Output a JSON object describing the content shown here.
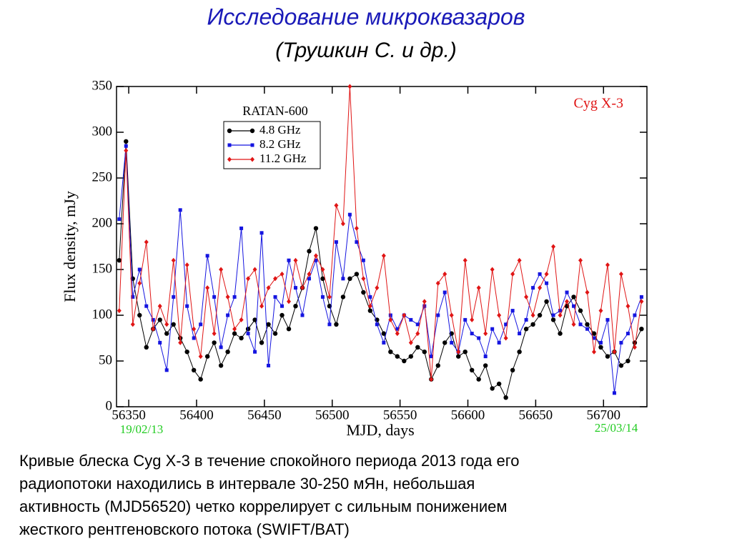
{
  "chart_data": {
    "type": "line",
    "title": "Исследование микроквазаров",
    "subtitle": "(Трушкин С. и др.)",
    "x_label": "MJD, days",
    "y_label": "Flux density, mJy",
    "legend_title": "RATAN-600",
    "annotation": "Cyg X-3",
    "start_date": "19/02/13",
    "end_date": "25/03/14",
    "caption": [
      "Кривые блеска Cyg X-3 в течение спокойного периода 2013 года его",
      "радиопотоки  находились в интервале 30-250 мЯн, небольшая",
      "активность (MJD56520) четко коррелирует с сильным понижением",
      "жесткого рентгеновского потока (SWIFT/BAT)"
    ],
    "xlim": [
      56341,
      56732
    ],
    "ylim": [
      0,
      350
    ],
    "xticks": [
      56350,
      56400,
      56450,
      56500,
      56550,
      56600,
      56650,
      56700
    ],
    "yticks": [
      0,
      50,
      100,
      150,
      200,
      250,
      300,
      350
    ],
    "legend": "upper-left",
    "x": [
      56343,
      56348,
      56353,
      56358,
      56363,
      56368,
      56373,
      56378,
      56383,
      56388,
      56393,
      56398,
      56403,
      56408,
      56413,
      56418,
      56423,
      56428,
      56433,
      56438,
      56443,
      56448,
      56453,
      56458,
      56463,
      56468,
      56473,
      56478,
      56483,
      56488,
      56493,
      56498,
      56503,
      56508,
      56513,
      56518,
      56523,
      56528,
      56533,
      56538,
      56543,
      56548,
      56553,
      56558,
      56563,
      56568,
      56573,
      56578,
      56583,
      56588,
      56593,
      56598,
      56603,
      56608,
      56613,
      56618,
      56623,
      56628,
      56633,
      56638,
      56643,
      56648,
      56653,
      56658,
      56663,
      56668,
      56673,
      56678,
      56683,
      56688,
      56693,
      56698,
      56703,
      56708,
      56713,
      56718,
      56723,
      56728
    ],
    "series": [
      {
        "name": "4.8 GHz",
        "color": "#000000",
        "marker": "circle",
        "values": [
          160,
          290,
          140,
          100,
          65,
          85,
          95,
          80,
          90,
          75,
          60,
          40,
          30,
          55,
          70,
          45,
          60,
          80,
          75,
          85,
          95,
          70,
          90,
          80,
          100,
          85,
          110,
          130,
          170,
          195,
          140,
          110,
          90,
          120,
          140,
          145,
          125,
          105,
          95,
          80,
          60,
          55,
          50,
          55,
          65,
          60,
          30,
          45,
          70,
          80,
          55,
          60,
          40,
          30,
          45,
          20,
          25,
          10,
          40,
          60,
          85,
          90,
          100,
          115,
          95,
          80,
          110,
          120,
          105,
          90,
          80,
          65,
          55,
          60,
          45,
          50,
          70,
          85
        ]
      },
      {
        "name": "8.2 GHz",
        "color": "#1515e0",
        "marker": "square",
        "values": [
          205,
          285,
          120,
          150,
          110,
          95,
          70,
          40,
          120,
          215,
          110,
          75,
          90,
          165,
          120,
          65,
          100,
          120,
          195,
          80,
          60,
          190,
          45,
          120,
          110,
          160,
          130,
          100,
          140,
          160,
          120,
          90,
          180,
          140,
          210,
          180,
          160,
          120,
          90,
          70,
          100,
          85,
          100,
          95,
          90,
          110,
          55,
          100,
          125,
          70,
          60,
          95,
          80,
          75,
          55,
          85,
          70,
          90,
          105,
          80,
          95,
          130,
          145,
          135,
          100,
          105,
          125,
          110,
          90,
          85,
          75,
          70,
          95,
          15,
          70,
          80,
          100,
          120
        ]
      },
      {
        "name": "11.2 GHz",
        "color": "#e01515",
        "marker": "diamond",
        "values": [
          105,
          280,
          90,
          135,
          180,
          85,
          110,
          90,
          160,
          70,
          155,
          85,
          55,
          130,
          80,
          150,
          120,
          85,
          95,
          140,
          150,
          110,
          130,
          140,
          145,
          115,
          160,
          130,
          145,
          165,
          150,
          120,
          220,
          200,
          350,
          195,
          140,
          110,
          130,
          165,
          95,
          80,
          100,
          70,
          80,
          115,
          30,
          135,
          145,
          100,
          60,
          160,
          95,
          130,
          80,
          150,
          100,
          75,
          145,
          160,
          120,
          100,
          130,
          145,
          175,
          100,
          115,
          90,
          160,
          125,
          60,
          105,
          155,
          60,
          145,
          110,
          65,
          115
        ]
      }
    ]
  }
}
